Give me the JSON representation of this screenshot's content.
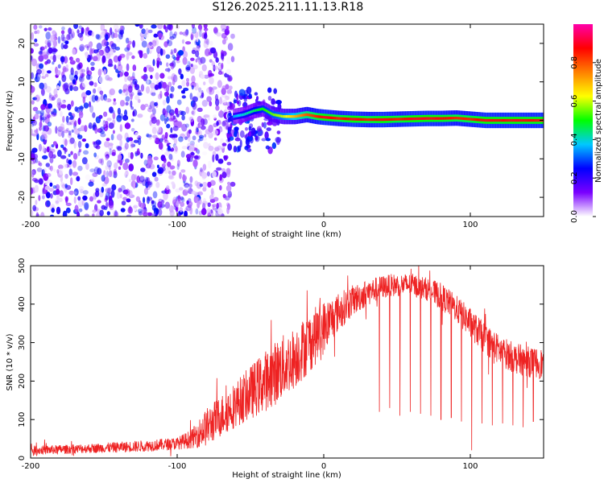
{
  "title": "S126.2025.211.11.13.R18",
  "chart_data": [
    {
      "type": "heatmap",
      "xlabel": "Height of straight line (km)",
      "ylabel": "Frequency (Hz)",
      "xlim": [
        -200,
        150
      ],
      "ylim": [
        -25,
        25
      ],
      "xticks": [
        -200,
        -100,
        0,
        100
      ],
      "yticks": [
        -20,
        -10,
        0,
        10,
        20
      ],
      "x_tick_labels": [
        "-200",
        "-100",
        "0",
        "100"
      ],
      "y_tick_labels": [
        "-20",
        "-10",
        "0",
        "10",
        "20"
      ],
      "colorbar": {
        "label": "Normalized spectral amplitude",
        "range": [
          0,
          1
        ],
        "ticks": [
          0.0,
          0.2,
          0.4,
          0.6,
          0.8
        ],
        "tick_labels": [
          "0.0",
          "0.2",
          "0.4",
          "0.6",
          "0.8"
        ],
        "colormap": [
          "#ffffff",
          "#7a00ff",
          "#0000ff",
          "#00c8ff",
          "#00ff00",
          "#ffff00",
          "#ff8000",
          "#ff0000",
          "#ff00aa"
        ]
      },
      "noise_region_km": [
        -200,
        -62
      ],
      "carrier_frequency_hz": 0,
      "carrier_trace": [
        {
          "x": -62,
          "freq": 1.0,
          "amp": 0.35
        },
        {
          "x": -55,
          "freq": 1.5,
          "amp": 0.4
        },
        {
          "x": -48,
          "freq": 2.5,
          "amp": 0.45
        },
        {
          "x": -42,
          "freq": 3.0,
          "amp": 0.5
        },
        {
          "x": -35,
          "freq": 1.5,
          "amp": 0.55
        },
        {
          "x": -28,
          "freq": 1.0,
          "amp": 0.6
        },
        {
          "x": -20,
          "freq": 1.0,
          "amp": 0.7
        },
        {
          "x": -12,
          "freq": 1.5,
          "amp": 0.8
        },
        {
          "x": -5,
          "freq": 1.0,
          "amp": 0.85
        },
        {
          "x": 0,
          "freq": 0.8,
          "amp": 0.9
        },
        {
          "x": 10,
          "freq": 0.5,
          "amp": 0.85
        },
        {
          "x": 20,
          "freq": 0.3,
          "amp": 0.9
        },
        {
          "x": 30,
          "freq": 0.2,
          "amp": 0.85
        },
        {
          "x": 40,
          "freq": 0.2,
          "amp": 0.9
        },
        {
          "x": 50,
          "freq": 0.3,
          "amp": 0.85
        },
        {
          "x": 60,
          "freq": 0.4,
          "amp": 0.9
        },
        {
          "x": 70,
          "freq": 0.5,
          "amp": 0.9
        },
        {
          "x": 80,
          "freq": 0.5,
          "amp": 0.88
        },
        {
          "x": 90,
          "freq": 0.6,
          "amp": 0.85
        },
        {
          "x": 100,
          "freq": 0.3,
          "amp": 0.85
        },
        {
          "x": 110,
          "freq": 0.0,
          "amp": 0.9
        },
        {
          "x": 120,
          "freq": 0.0,
          "amp": 0.88
        },
        {
          "x": 130,
          "freq": 0.0,
          "amp": 0.9
        },
        {
          "x": 140,
          "freq": 0.0,
          "amp": 0.88
        },
        {
          "x": 150,
          "freq": 0.0,
          "amp": 0.9
        }
      ]
    },
    {
      "type": "line",
      "xlabel": "Height of straight line (km)",
      "ylabel": "SNR (10 * v/v)",
      "xlim": [
        -200,
        150
      ],
      "ylim": [
        0,
        500
      ],
      "xticks": [
        -200,
        -100,
        0,
        100
      ],
      "yticks": [
        0,
        100,
        200,
        300,
        400,
        500
      ],
      "x_tick_labels": [
        "-200",
        "-100",
        "0",
        "100"
      ],
      "y_tick_labels": [
        "0",
        "100",
        "200",
        "300",
        "400",
        "500"
      ],
      "series": [
        {
          "color": "#ee2222",
          "envelope": [
            {
              "x": -200,
              "mean": 20,
              "spread": 12
            },
            {
              "x": -180,
              "mean": 22,
              "spread": 12
            },
            {
              "x": -160,
              "mean": 25,
              "spread": 12
            },
            {
              "x": -140,
              "mean": 28,
              "spread": 14
            },
            {
              "x": -120,
              "mean": 32,
              "spread": 15
            },
            {
              "x": -100,
              "mean": 38,
              "spread": 16
            },
            {
              "x": -90,
              "mean": 50,
              "spread": 25
            },
            {
              "x": -80,
              "mean": 80,
              "spread": 50
            },
            {
              "x": -70,
              "mean": 110,
              "spread": 55
            },
            {
              "x": -60,
              "mean": 140,
              "spread": 60
            },
            {
              "x": -50,
              "mean": 170,
              "spread": 70
            },
            {
              "x": -40,
              "mean": 200,
              "spread": 80
            },
            {
              "x": -30,
              "mean": 230,
              "spread": 85
            },
            {
              "x": -20,
              "mean": 260,
              "spread": 80
            },
            {
              "x": -10,
              "mean": 300,
              "spread": 80
            },
            {
              "x": 0,
              "mean": 340,
              "spread": 70
            },
            {
              "x": 10,
              "mean": 380,
              "spread": 50
            },
            {
              "x": 20,
              "mean": 410,
              "spread": 40
            },
            {
              "x": 30,
              "mean": 430,
              "spread": 35
            },
            {
              "x": 40,
              "mean": 445,
              "spread": 30
            },
            {
              "x": 50,
              "mean": 450,
              "spread": 30
            },
            {
              "x": 60,
              "mean": 450,
              "spread": 30
            },
            {
              "x": 70,
              "mean": 440,
              "spread": 30
            },
            {
              "x": 80,
              "mean": 420,
              "spread": 35
            },
            {
              "x": 90,
              "mean": 390,
              "spread": 35
            },
            {
              "x": 100,
              "mean": 350,
              "spread": 40
            },
            {
              "x": 110,
              "mean": 310,
              "spread": 40
            },
            {
              "x": 120,
              "mean": 280,
              "spread": 40
            },
            {
              "x": 130,
              "mean": 260,
              "spread": 40
            },
            {
              "x": 140,
              "mean": 250,
              "spread": 40
            },
            {
              "x": 150,
              "mean": 245,
              "spread": 40
            }
          ],
          "dropouts": [
            {
              "x": 38,
              "min": 120
            },
            {
              "x": 45,
              "min": 130
            },
            {
              "x": 52,
              "min": 110
            },
            {
              "x": 59,
              "min": 120
            },
            {
              "x": 66,
              "min": 115
            },
            {
              "x": 73,
              "min": 110
            },
            {
              "x": 80,
              "min": 100
            },
            {
              "x": 87,
              "min": 105
            },
            {
              "x": 94,
              "min": 95
            },
            {
              "x": 101,
              "min": 20
            },
            {
              "x": 108,
              "min": 90
            },
            {
              "x": 115,
              "min": 85
            },
            {
              "x": 122,
              "min": 90
            },
            {
              "x": 129,
              "min": 85
            },
            {
              "x": 136,
              "min": 80
            },
            {
              "x": 143,
              "min": 95
            }
          ]
        }
      ]
    }
  ]
}
